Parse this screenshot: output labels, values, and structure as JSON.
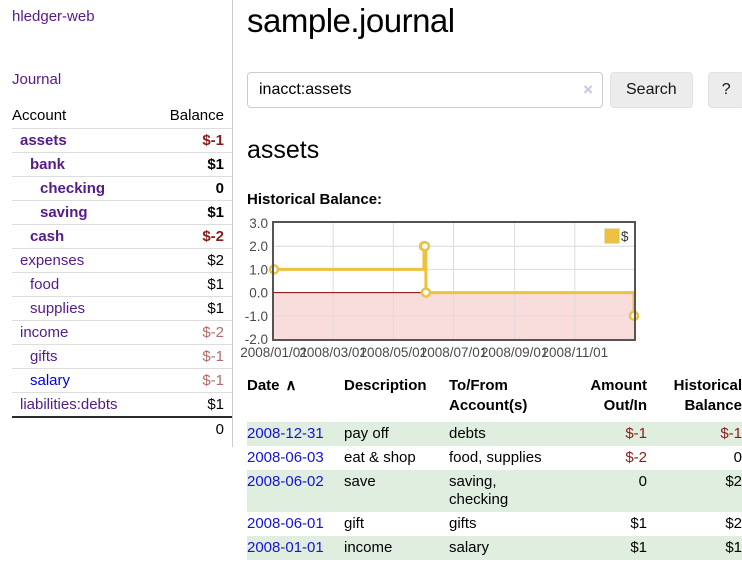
{
  "colors": {
    "link_visited_purple": "#551A8B",
    "link_unvisited_blue": "#0000EE",
    "negative_strong_red": "#8c1a1a",
    "negative_soft_red": "#b36b6b",
    "register_stripe_green": "#dfeedf",
    "chart_line_gold": "#edc240"
  },
  "sidebar": {
    "brand": "hledger-web",
    "nav": {
      "journal": "Journal"
    },
    "accounts_table": {
      "headers": {
        "account": "Account",
        "balance": "Balance"
      },
      "rows": [
        {
          "name": "assets",
          "balance": "$-1",
          "level": 0,
          "in_query_scope": true,
          "balance_tone": "negative-strong",
          "link_state": "visited"
        },
        {
          "name": "bank",
          "balance": "$1",
          "level": 1,
          "in_query_scope": true,
          "balance_tone": "normal",
          "link_state": "visited"
        },
        {
          "name": "checking",
          "balance": "0",
          "level": 2,
          "in_query_scope": true,
          "balance_tone": "normal",
          "link_state": "visited"
        },
        {
          "name": "saving",
          "balance": "$1",
          "level": 2,
          "in_query_scope": true,
          "balance_tone": "normal",
          "link_state": "visited"
        },
        {
          "name": "cash",
          "balance": "$-2",
          "level": 1,
          "in_query_scope": true,
          "balance_tone": "negative-strong",
          "link_state": "visited"
        },
        {
          "name": "expenses",
          "balance": "$2",
          "level": 0,
          "in_query_scope": false,
          "balance_tone": "normal",
          "link_state": "visited"
        },
        {
          "name": "food",
          "balance": "$1",
          "level": 1,
          "in_query_scope": false,
          "balance_tone": "normal",
          "link_state": "visited"
        },
        {
          "name": "supplies",
          "balance": "$1",
          "level": 1,
          "in_query_scope": false,
          "balance_tone": "normal",
          "link_state": "visited"
        },
        {
          "name": "income",
          "balance": "$-2",
          "level": 0,
          "in_query_scope": false,
          "balance_tone": "negative-soft",
          "link_state": "visited"
        },
        {
          "name": "gifts",
          "balance": "$-1",
          "level": 1,
          "in_query_scope": false,
          "balance_tone": "negative-soft",
          "link_state": "visited"
        },
        {
          "name": "salary",
          "balance": "$-1",
          "level": 1,
          "in_query_scope": false,
          "balance_tone": "negative-soft",
          "link_state": "unvisited"
        },
        {
          "name": "liabilities:debts",
          "balance": "$1",
          "level": 0,
          "in_query_scope": false,
          "balance_tone": "normal",
          "link_state": "visited"
        }
      ],
      "total": "0"
    }
  },
  "header": {
    "title": "sample.journal"
  },
  "search": {
    "value": "inacct:assets",
    "clear_icon": "×",
    "button_label": "Search",
    "help_button_label": "?"
  },
  "report": {
    "account_heading": "assets",
    "chart_heading": "Historical Balance:"
  },
  "chart_data": {
    "type": "line",
    "step": true,
    "title": "Historical Balance",
    "series": [
      {
        "name": "$",
        "color": "#edc240",
        "points": [
          [
            "2008-01-01",
            1
          ],
          [
            "2008-06-01",
            2
          ],
          [
            "2008-06-02",
            2
          ],
          [
            "2008-06-03",
            0
          ],
          [
            "2008-12-31",
            -1
          ]
        ]
      }
    ],
    "xlim": [
      "2008-01-01",
      "2008-12-31"
    ],
    "ylim": [
      -2,
      3
    ],
    "yticks": [
      3,
      2,
      1,
      0,
      -1,
      -2
    ],
    "xticks": [
      {
        "date": "2008-01-01",
        "label": "2008/01/01"
      },
      {
        "date": "2008-03-01",
        "label": "2008/03/01"
      },
      {
        "date": "2008-05-01",
        "label": "2008/05/01"
      },
      {
        "date": "2008-07-01",
        "label": "2008/07/01"
      },
      {
        "date": "2008-09-01",
        "label": "2008/09/01"
      },
      {
        "date": "2008-11-01",
        "label": "2008/11/01"
      }
    ],
    "legend": {
      "position": "top-right",
      "label": "$"
    },
    "grid": true,
    "colors": {
      "negative_region": "#f9dddd",
      "zero_line": "#8b0000",
      "grid": "#dcdcdc",
      "border": "#545454",
      "tick_text": "#4a4a4a"
    }
  },
  "register": {
    "columns": [
      {
        "label": "Date",
        "sort_indicator": "∧"
      },
      {
        "label": "Description"
      },
      {
        "label": "To/From Account(s)"
      },
      {
        "label": "Amount Out/In"
      },
      {
        "label": "Historical Balance"
      }
    ],
    "rows": [
      {
        "date": "2008-12-31",
        "description": "pay off",
        "accounts": "debts",
        "amount": "$-1",
        "amount_negative": true,
        "balance": "$-1",
        "balance_negative": true,
        "striped": true
      },
      {
        "date": "2008-06-03",
        "description": "eat & shop",
        "accounts": "food, supplies",
        "amount": "$-2",
        "amount_negative": true,
        "balance": "0",
        "balance_negative": false,
        "striped": false
      },
      {
        "date": "2008-06-02",
        "description": "save",
        "accounts": "saving, checking",
        "amount": "0",
        "amount_negative": false,
        "balance": "$2",
        "balance_negative": false,
        "striped": true
      },
      {
        "date": "2008-06-01",
        "description": "gift",
        "accounts": "gifts",
        "amount": "$1",
        "amount_negative": false,
        "balance": "$2",
        "balance_negative": false,
        "striped": false
      },
      {
        "date": "2008-01-01",
        "description": "income",
        "accounts": "salary",
        "amount": "$1",
        "amount_negative": false,
        "balance": "$1",
        "balance_negative": false,
        "striped": true
      }
    ]
  }
}
